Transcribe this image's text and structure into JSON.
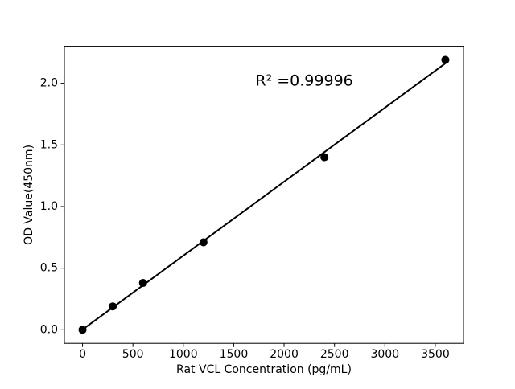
{
  "figure": {
    "background": "#ffffff"
  },
  "chart_data": {
    "type": "scatter",
    "title": "",
    "xlabel": "Rat VCL Concentration (pg/mL)",
    "ylabel": "OD Value(450nm)",
    "annotation": {
      "text": "R² =0.99996",
      "x": 2200,
      "y": 2.02
    },
    "points": {
      "x": [
        0,
        300,
        600,
        1200,
        2400,
        3600
      ],
      "y": [
        0.0,
        0.19,
        0.38,
        0.71,
        1.4,
        2.19
      ]
    },
    "fit_line": {
      "slope": 0.0006,
      "intercept": 0.0014,
      "x_range": [
        0,
        3600
      ]
    },
    "xticks": {
      "values": [
        0,
        500,
        1000,
        1500,
        2000,
        2500,
        3000,
        3500
      ],
      "labels": [
        "0",
        "500",
        "1000",
        "1500",
        "2000",
        "2500",
        "3000",
        "3500"
      ]
    },
    "yticks": {
      "values": [
        0,
        0.5,
        1.0,
        1.5,
        2.0
      ],
      "labels": [
        "0.0",
        "0.5",
        "1.0",
        "1.5",
        "2.0"
      ]
    },
    "xlim": [
      -180,
      3780
    ],
    "ylim": [
      -0.11,
      2.3
    ],
    "grid": false,
    "legend": null,
    "marker": {
      "shape": "circle",
      "diameter": 10,
      "color": "#000000"
    },
    "line_color": "#000000",
    "axis_color": "#000000",
    "text_color": "#000000"
  }
}
